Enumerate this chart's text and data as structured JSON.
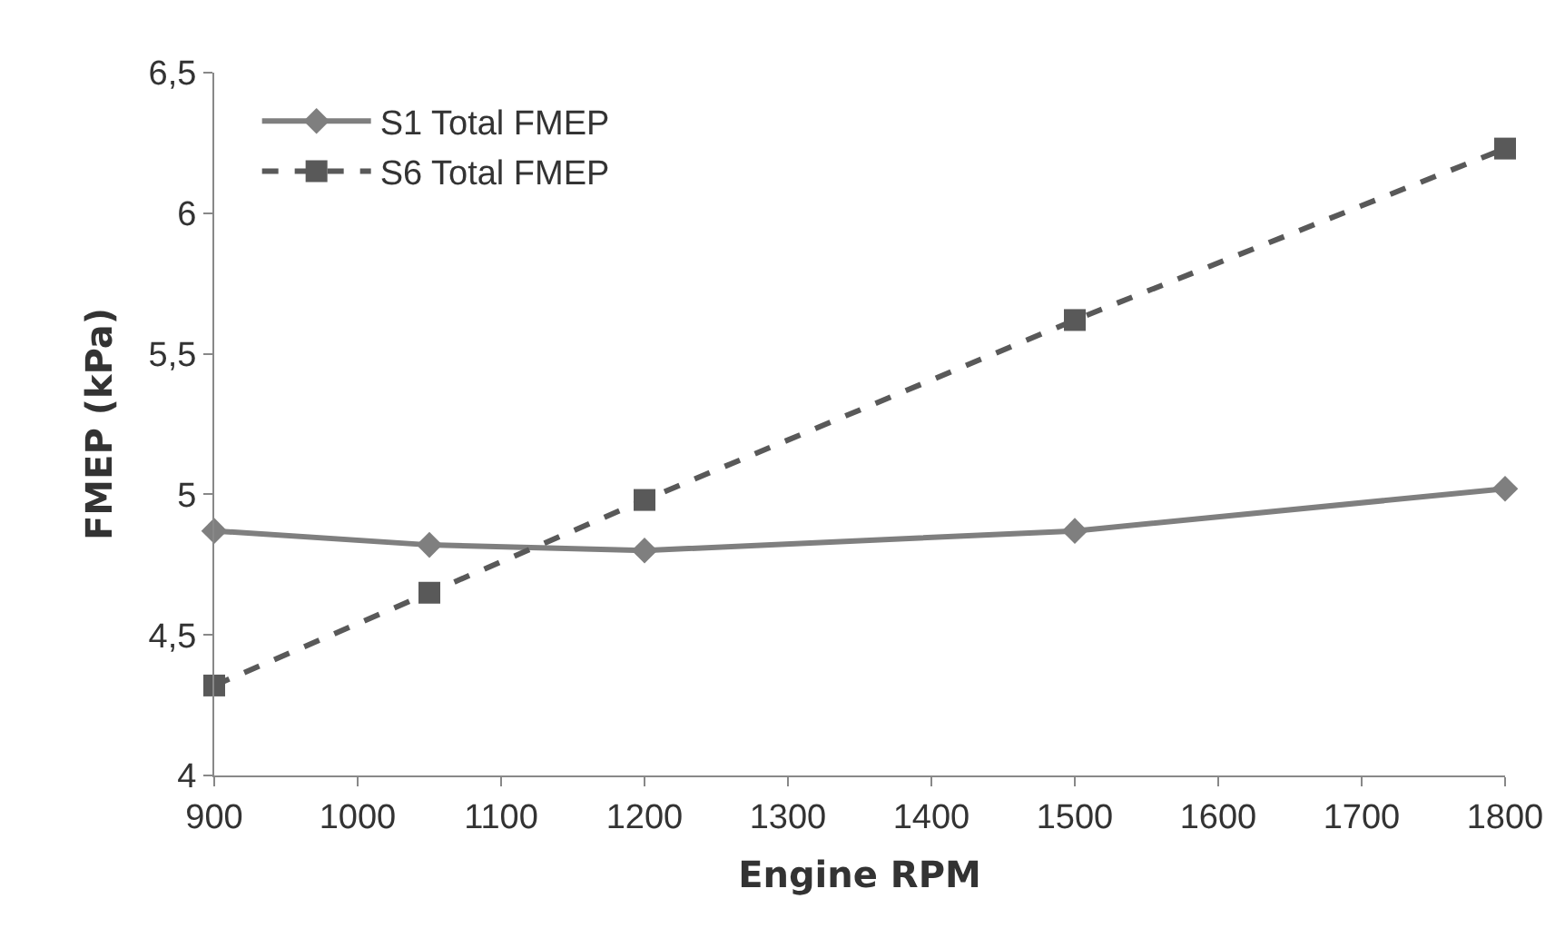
{
  "chart_data": {
    "type": "line",
    "xlabel": "Engine RPM",
    "ylabel": "FMEP (kPa)",
    "x": [
      900,
      1050,
      1200,
      1500,
      1800
    ],
    "series": [
      {
        "name": "S1 Total FMEP",
        "color": "#7f7f7f",
        "values": [
          4.87,
          4.82,
          4.8,
          4.87,
          5.02
        ],
        "marker": "diamond",
        "line_style": "solid"
      },
      {
        "name": "S6 Total FMEP",
        "color": "#595959",
        "values": [
          4.32,
          4.65,
          4.98,
          5.62,
          6.23
        ],
        "marker": "square",
        "line_style": "dashed"
      }
    ],
    "xlim": [
      900,
      1800
    ],
    "xticks": [
      900,
      1000,
      1100,
      1200,
      1300,
      1400,
      1500,
      1600,
      1700,
      1800
    ],
    "ylim": [
      4,
      6.5
    ],
    "yticks": [
      4,
      {
        "value": 4.5,
        "label": "4,5"
      },
      5,
      {
        "value": 5.5,
        "label": "5,5"
      },
      6,
      {
        "value": 6.5,
        "label": "6,5"
      }
    ],
    "grid": false,
    "legend": "top left"
  }
}
